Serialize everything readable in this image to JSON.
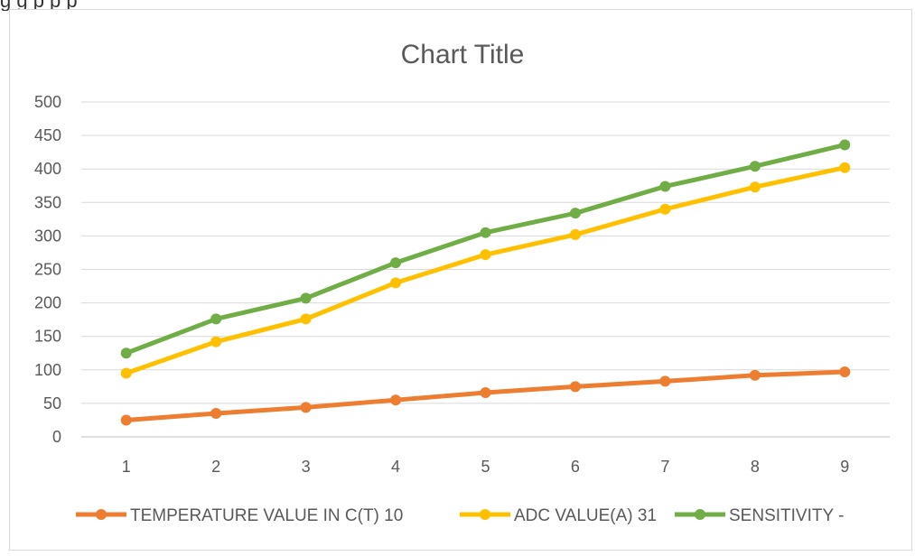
{
  "top_text": "g        g  p                        p                                   p",
  "chart_data": {
    "type": "line",
    "title": "Chart Title",
    "x": [
      1,
      2,
      3,
      4,
      5,
      6,
      7,
      8,
      9
    ],
    "ylim": [
      0,
      500
    ],
    "yticks": [
      0,
      50,
      100,
      150,
      200,
      250,
      300,
      350,
      400,
      450,
      500
    ],
    "grid": true,
    "legend_position": "bottom",
    "series": [
      {
        "name": "TEMPERATURE VALUE IN C(T) 10",
        "color": "#ed7d31",
        "values": [
          25,
          35,
          44,
          55,
          66,
          75,
          83,
          92,
          97
        ]
      },
      {
        "name": "ADC VALUE(A) 31",
        "color": "#ffc000",
        "values": [
          95,
          142,
          176,
          230,
          272,
          302,
          340,
          373,
          402
        ]
      },
      {
        "name": "SENSITIVITY -",
        "color": "#70ad47",
        "values": [
          125,
          176,
          207,
          260,
          305,
          334,
          374,
          404,
          436
        ]
      }
    ]
  }
}
